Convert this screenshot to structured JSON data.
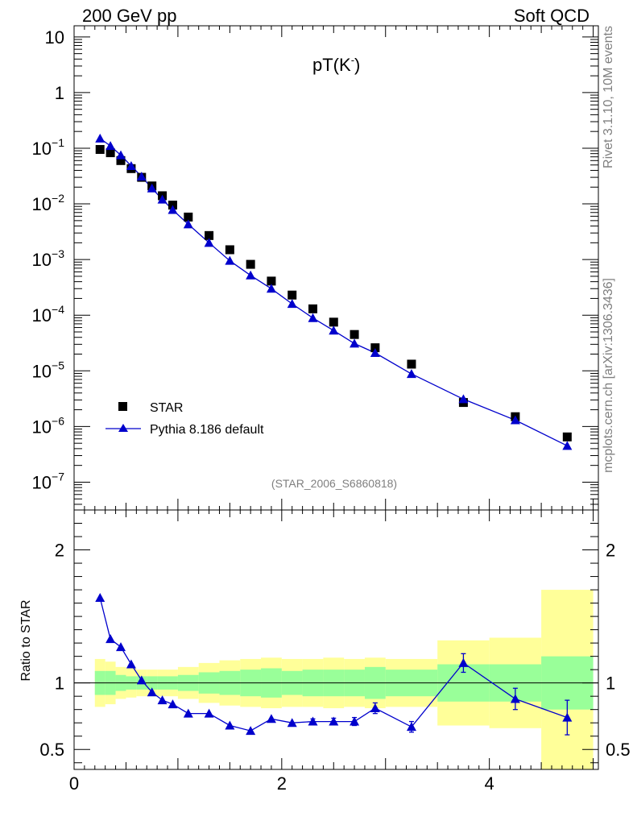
{
  "header": {
    "left": "200 GeV pp",
    "right": "Soft QCD"
  },
  "side_labels": {
    "rivet": "Rivet 3.1.10,  10M events",
    "mcplots": "mcplots.cern.ch [arXiv:1306.3436]"
  },
  "chart_data": [
    {
      "type": "scatter",
      "panel": "main",
      "title": "pT(K",
      "title_sup": "-",
      "title_close": ")",
      "watermark": "(STAR_2006_S6860818)",
      "xlim": [
        0,
        5.05
      ],
      "ylim_log10": [
        -7.5,
        1.2
      ],
      "yscale": "log",
      "y_tick_labels": [
        {
          "value": 10,
          "base": "10",
          "exp": ""
        },
        {
          "value": 1,
          "base": "1",
          "exp": ""
        },
        {
          "value": 0.1,
          "base": "10",
          "exp": "−1"
        },
        {
          "value": 0.01,
          "base": "10",
          "exp": "−2"
        },
        {
          "value": 0.001,
          "base": "10",
          "exp": "−3"
        },
        {
          "value": 0.0001,
          "base": "10",
          "exp": "−4"
        },
        {
          "value": 1e-05,
          "base": "10",
          "exp": "−5"
        },
        {
          "value": 1e-06,
          "base": "10",
          "exp": "−6"
        },
        {
          "value": 1e-07,
          "base": "10",
          "exp": "−7"
        }
      ],
      "legend": [
        {
          "label": "STAR",
          "marker": "square",
          "color": "#000000"
        },
        {
          "label": "Pythia 8.186 default",
          "marker": "triangle",
          "color": "#0000cc"
        }
      ],
      "series": [
        {
          "name": "STAR",
          "x": [
            0.25,
            0.35,
            0.45,
            0.55,
            0.65,
            0.75,
            0.85,
            0.95,
            1.1,
            1.3,
            1.5,
            1.7,
            1.9,
            2.1,
            2.3,
            2.5,
            2.7,
            2.9,
            3.25,
            3.75,
            4.25,
            4.75
          ],
          "y": [
            0.095,
            0.083,
            0.06,
            0.043,
            0.03,
            0.021,
            0.014,
            0.0095,
            0.0058,
            0.0027,
            0.0015,
            0.00082,
            0.00041,
            0.00023,
            0.00013,
            7.5e-05,
            4.5e-05,
            2.6e-05,
            1.32e-05,
            2.7e-06,
            1.5e-06,
            6.5e-07
          ]
        },
        {
          "name": "Pythia 8.186 default",
          "x": [
            0.25,
            0.35,
            0.45,
            0.55,
            0.65,
            0.75,
            0.85,
            0.95,
            1.1,
            1.3,
            1.5,
            1.7,
            1.9,
            2.1,
            2.3,
            2.5,
            2.7,
            2.9,
            3.25,
            3.75,
            4.25,
            4.75
          ],
          "y": [
            0.15,
            0.11,
            0.075,
            0.048,
            0.031,
            0.019,
            0.012,
            0.0078,
            0.0043,
            0.002,
            0.00095,
            0.00052,
            0.0003,
            0.00016,
            8.9e-05,
            5.3e-05,
            3.1e-05,
            2.1e-05,
            8.8e-06,
            3.1e-06,
            1.3e-06,
            4.5e-07
          ]
        }
      ]
    },
    {
      "type": "line",
      "panel": "ratio",
      "ylabel": "Ratio to STAR",
      "xlabel": "",
      "xlim": [
        0,
        5.05
      ],
      "ylim": [
        0.35,
        2.3
      ],
      "x_tick_labels": [
        "0",
        "2",
        "4"
      ],
      "y_tick_labels": [
        "0.5",
        "1",
        "2"
      ],
      "bands": {
        "x_edges": [
          0.2,
          0.3,
          0.4,
          0.5,
          0.6,
          0.7,
          0.8,
          0.9,
          1.0,
          1.2,
          1.4,
          1.6,
          1.8,
          2.0,
          2.2,
          2.4,
          2.6,
          2.8,
          3.0,
          3.5,
          4.0,
          4.5,
          5.0
        ],
        "green_half_width": [
          0.09,
          0.09,
          0.06,
          0.05,
          0.05,
          0.05,
          0.05,
          0.05,
          0.06,
          0.08,
          0.09,
          0.1,
          0.11,
          0.09,
          0.1,
          0.1,
          0.1,
          0.12,
          0.1,
          0.14,
          0.14,
          0.2
        ],
        "yellow_half_width": [
          0.18,
          0.16,
          0.12,
          0.11,
          0.1,
          0.1,
          0.1,
          0.1,
          0.12,
          0.15,
          0.17,
          0.18,
          0.19,
          0.18,
          0.18,
          0.19,
          0.18,
          0.19,
          0.18,
          0.32,
          0.34,
          0.7
        ],
        "green_color": "#99ff99",
        "yellow_color": "#ffff99"
      },
      "series": [
        {
          "name": "Pythia 8.186 default / STAR",
          "color": "#0000cc",
          "x": [
            0.25,
            0.35,
            0.45,
            0.55,
            0.65,
            0.75,
            0.85,
            0.95,
            1.1,
            1.3,
            1.5,
            1.7,
            1.9,
            2.1,
            2.3,
            2.5,
            2.7,
            2.9,
            3.25,
            3.75,
            4.25,
            4.75
          ],
          "y": [
            1.64,
            1.33,
            1.27,
            1.14,
            1.02,
            0.93,
            0.87,
            0.84,
            0.77,
            0.77,
            0.68,
            0.64,
            0.73,
            0.7,
            0.71,
            0.71,
            0.71,
            0.81,
            0.67,
            1.15,
            0.88,
            0.74
          ],
          "err": [
            0,
            0,
            0,
            0,
            0,
            0,
            0,
            0,
            0,
            0,
            0,
            0,
            0,
            0,
            0.02,
            0.025,
            0.03,
            0.04,
            0.04,
            0.07,
            0.08,
            0.13
          ]
        }
      ]
    }
  ]
}
